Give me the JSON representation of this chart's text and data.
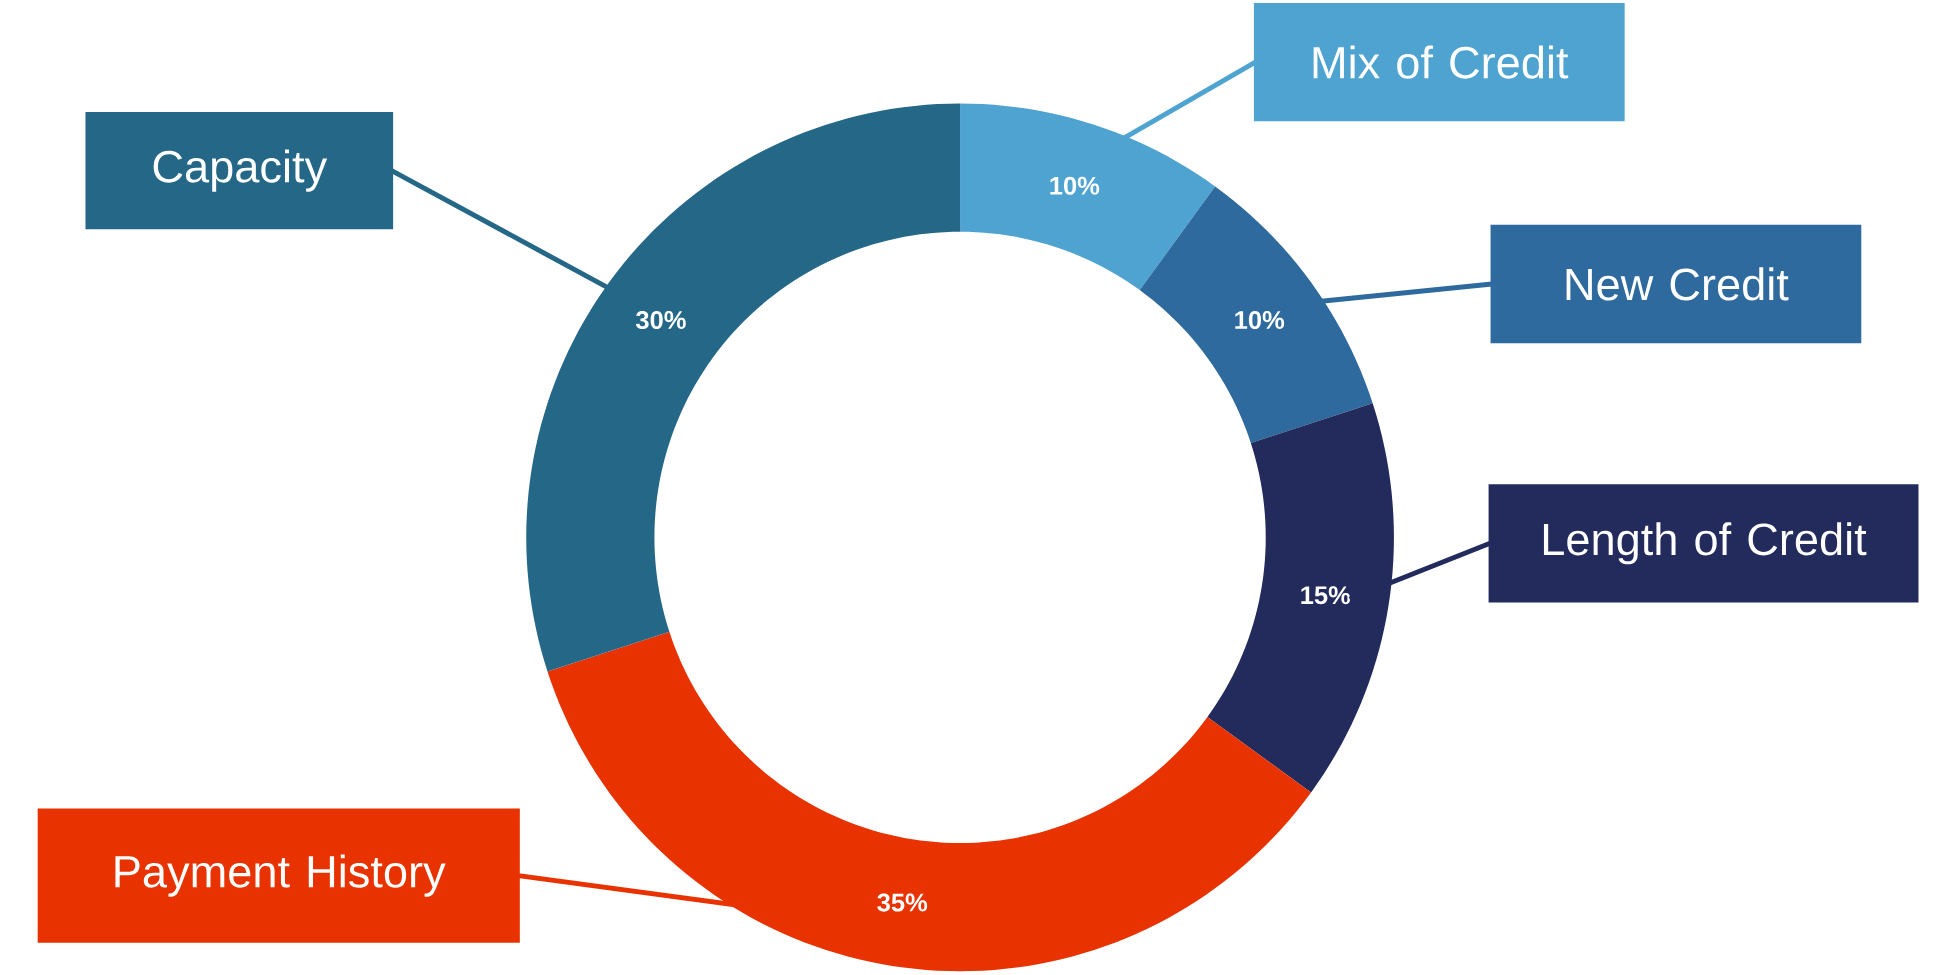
{
  "chart_data": {
    "type": "donut",
    "categories": [
      "Mix of Credit",
      "New Credit",
      "Length of Credit",
      "Payment History",
      "Capacity"
    ],
    "values": [
      10,
      10,
      15,
      35,
      30
    ],
    "colors": [
      "#4fa3d1",
      "#2e6a9e",
      "#232a5c",
      "#e83200",
      "#256787"
    ],
    "value_labels": [
      "10%",
      "10%",
      "15%",
      "35%",
      "30%"
    ]
  }
}
